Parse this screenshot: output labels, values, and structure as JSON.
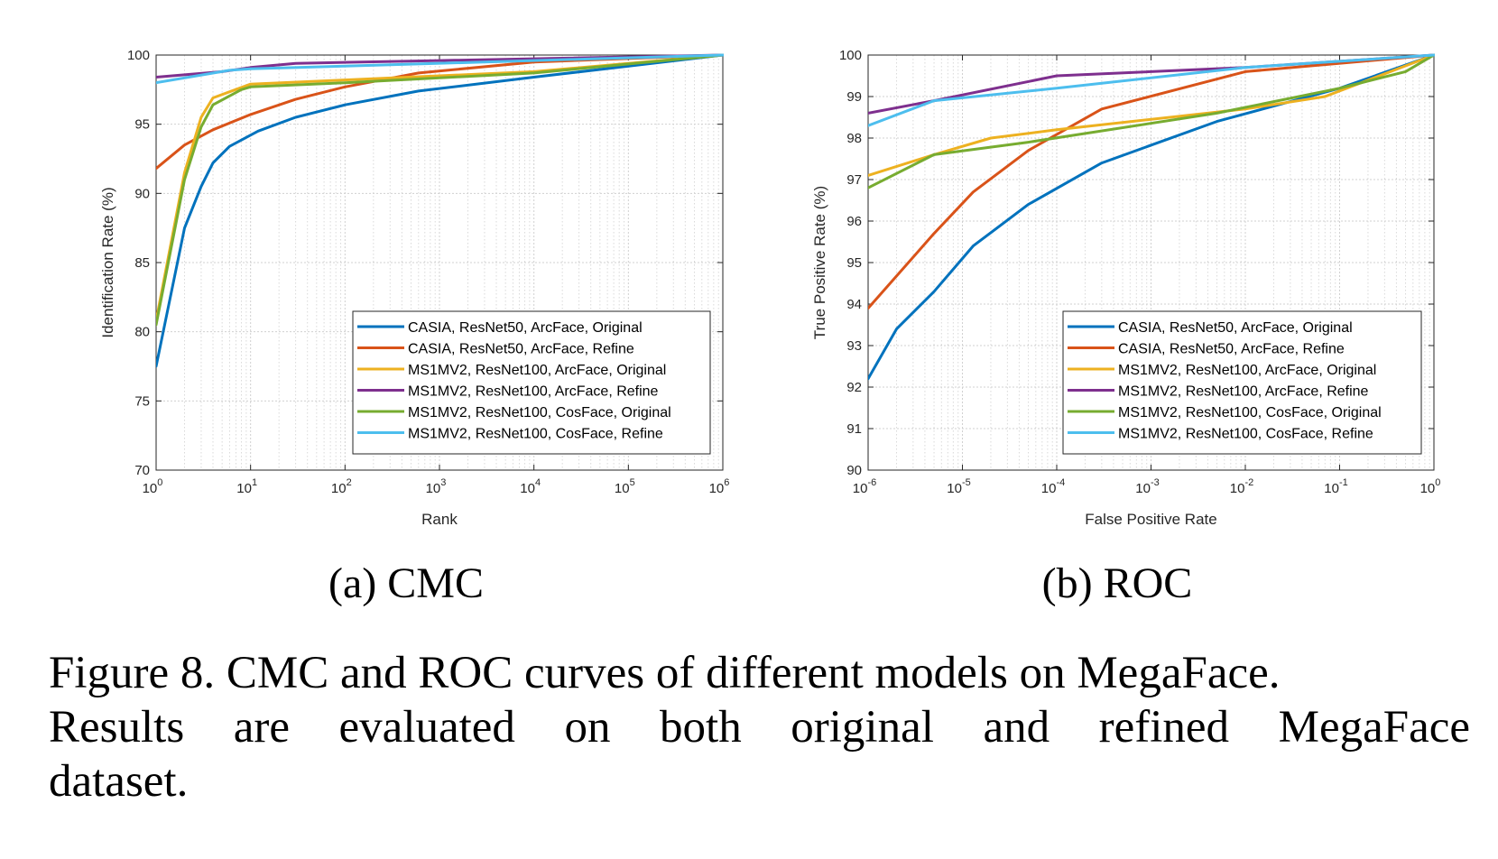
{
  "colors": {
    "blue": "#0072BD",
    "red": "#D95319",
    "yellow": "#EDB120",
    "purple": "#7E2F8E",
    "green": "#77AC30",
    "cyan": "#4DBEEE"
  },
  "legend_entries": [
    "CASIA, ResNet50, ArcFace, Original",
    "CASIA, ResNet50, ArcFace, Refine",
    "MS1MV2, ResNet100, ArcFace, Original",
    "MS1MV2, ResNet100, ArcFace, Refine",
    "MS1MV2, ResNet100, CosFace, Original",
    "MS1MV2, ResNet100, CosFace, Refine"
  ],
  "subcaptions": {
    "a": "(a)  CMC",
    "b": "(b)  ROC"
  },
  "caption": {
    "line1": "Figure 8. CMC and ROC curves of different models on MegaFace.",
    "line2_words": [
      "Results",
      "are",
      "evaluated",
      "on",
      "both",
      "original",
      "and",
      "refined",
      "MegaFace"
    ],
    "line3": "dataset."
  },
  "chart_data": [
    {
      "type": "line",
      "xlabel": "Rank",
      "ylabel": "Identification Rate (%)",
      "xscale": "log",
      "xlim": [
        1,
        1000000
      ],
      "ylim": [
        70,
        100
      ],
      "xticks": [
        {
          "value": 1,
          "base": "10",
          "exp": "0"
        },
        {
          "value": 10,
          "base": "10",
          "exp": "1"
        },
        {
          "value": 100,
          "base": "10",
          "exp": "2"
        },
        {
          "value": 1000,
          "base": "10",
          "exp": "3"
        },
        {
          "value": 10000,
          "base": "10",
          "exp": "4"
        },
        {
          "value": 100000,
          "base": "10",
          "exp": "5"
        },
        {
          "value": 1000000,
          "base": "10",
          "exp": "6"
        }
      ],
      "yticks": [
        "70",
        "75",
        "80",
        "85",
        "90",
        "95",
        "100"
      ],
      "grid": true,
      "legend_location": "bottom-right",
      "series": [
        {
          "name": "CASIA, ResNet50, ArcFace, Original",
          "color": "#0072BD",
          "x": [
            1,
            2,
            3,
            4,
            6,
            12,
            30,
            100,
            600,
            10000,
            1000000
          ],
          "y": [
            77.5,
            87.5,
            90.5,
            92.2,
            93.4,
            94.5,
            95.5,
            96.4,
            97.4,
            98.4,
            100
          ]
        },
        {
          "name": "CASIA, ResNet50, ArcFace, Refine",
          "color": "#D95319",
          "x": [
            1,
            2,
            4,
            10,
            30,
            100,
            600,
            10000,
            1000000
          ],
          "y": [
            91.8,
            93.5,
            94.6,
            95.7,
            96.8,
            97.7,
            98.7,
            99.5,
            100
          ]
        },
        {
          "name": "MS1MV2, ResNet100, ArcFace, Original",
          "color": "#EDB120",
          "x": [
            1,
            2,
            3,
            4,
            10,
            100,
            10000,
            1000000
          ],
          "y": [
            80.8,
            91.5,
            95.5,
            96.9,
            97.9,
            98.2,
            98.8,
            100
          ]
        },
        {
          "name": "MS1MV2, ResNet100, ArcFace, Refine",
          "color": "#7E2F8E",
          "x": [
            1,
            5,
            10,
            30,
            1000,
            1000000
          ],
          "y": [
            98.4,
            98.8,
            99.1,
            99.4,
            99.6,
            100
          ]
        },
        {
          "name": "MS1MV2, ResNet100, CosFace, Original",
          "color": "#77AC30",
          "x": [
            1,
            2,
            3,
            4,
            8,
            10,
            100,
            10000,
            1000000
          ],
          "y": [
            80.5,
            91.0,
            94.8,
            96.4,
            97.5,
            97.7,
            98.0,
            98.7,
            100
          ]
        },
        {
          "name": "MS1MV2, ResNet100, CosFace, Refine",
          "color": "#4DBEEE",
          "x": [
            1,
            6,
            10,
            100,
            10000,
            1000000
          ],
          "y": [
            98.0,
            98.9,
            99.0,
            99.2,
            99.6,
            100
          ]
        }
      ]
    },
    {
      "type": "line",
      "xlabel": "False Positive Rate",
      "ylabel": "True Positive Rate (%)",
      "xscale": "log",
      "xlim": [
        1e-06,
        1
      ],
      "ylim": [
        90,
        100
      ],
      "xticks": [
        {
          "value": 1e-06,
          "base": "10",
          "exp": "-6"
        },
        {
          "value": 1e-05,
          "base": "10",
          "exp": "-5"
        },
        {
          "value": 0.0001,
          "base": "10",
          "exp": "-4"
        },
        {
          "value": 0.001,
          "base": "10",
          "exp": "-3"
        },
        {
          "value": 0.01,
          "base": "10",
          "exp": "-2"
        },
        {
          "value": 0.1,
          "base": "10",
          "exp": "-1"
        },
        {
          "value": 1,
          "base": "10",
          "exp": "0"
        }
      ],
      "yticks": [
        "90",
        "91",
        "92",
        "93",
        "94",
        "95",
        "96",
        "97",
        "98",
        "99",
        "100"
      ],
      "grid": true,
      "legend_location": "bottom-right",
      "series": [
        {
          "name": "CASIA, ResNet50, ArcFace, Original",
          "color": "#0072BD",
          "x": [
            1e-06,
            2e-06,
            5e-06,
            1.3e-05,
            5e-05,
            0.0003,
            0.005,
            0.1,
            1
          ],
          "y": [
            92.2,
            93.4,
            94.3,
            95.4,
            96.4,
            97.4,
            98.4,
            99.2,
            100
          ]
        },
        {
          "name": "CASIA, ResNet50, ArcFace, Refine",
          "color": "#D95319",
          "x": [
            1e-06,
            5e-06,
            1.3e-05,
            5e-05,
            0.0003,
            0.01,
            1
          ],
          "y": [
            93.9,
            95.7,
            96.7,
            97.7,
            98.7,
            99.6,
            100
          ]
        },
        {
          "name": "MS1MV2, ResNet100, ArcFace, Original",
          "color": "#EDB120",
          "x": [
            1e-06,
            5e-06,
            2e-05,
            0.0001,
            0.01,
            0.07,
            1
          ],
          "y": [
            97.1,
            97.6,
            98.0,
            98.2,
            98.7,
            99.0,
            100
          ]
        },
        {
          "name": "MS1MV2, ResNet100, ArcFace, Refine",
          "color": "#7E2F8E",
          "x": [
            1e-06,
            5e-06,
            0.0001,
            0.01,
            1
          ],
          "y": [
            98.6,
            98.9,
            99.5,
            99.7,
            100
          ]
        },
        {
          "name": "MS1MV2, ResNet100, CosFace, Original",
          "color": "#77AC30",
          "x": [
            1e-06,
            5e-06,
            5e-05,
            0.005,
            0.1,
            0.5,
            1
          ],
          "y": [
            96.8,
            97.6,
            97.9,
            98.6,
            99.2,
            99.6,
            100
          ]
        },
        {
          "name": "MS1MV2, ResNet100, CosFace, Refine",
          "color": "#4DBEEE",
          "x": [
            1e-06,
            5e-06,
            0.0001,
            0.01,
            1
          ],
          "y": [
            98.3,
            98.9,
            99.2,
            99.7,
            100
          ]
        }
      ]
    }
  ]
}
